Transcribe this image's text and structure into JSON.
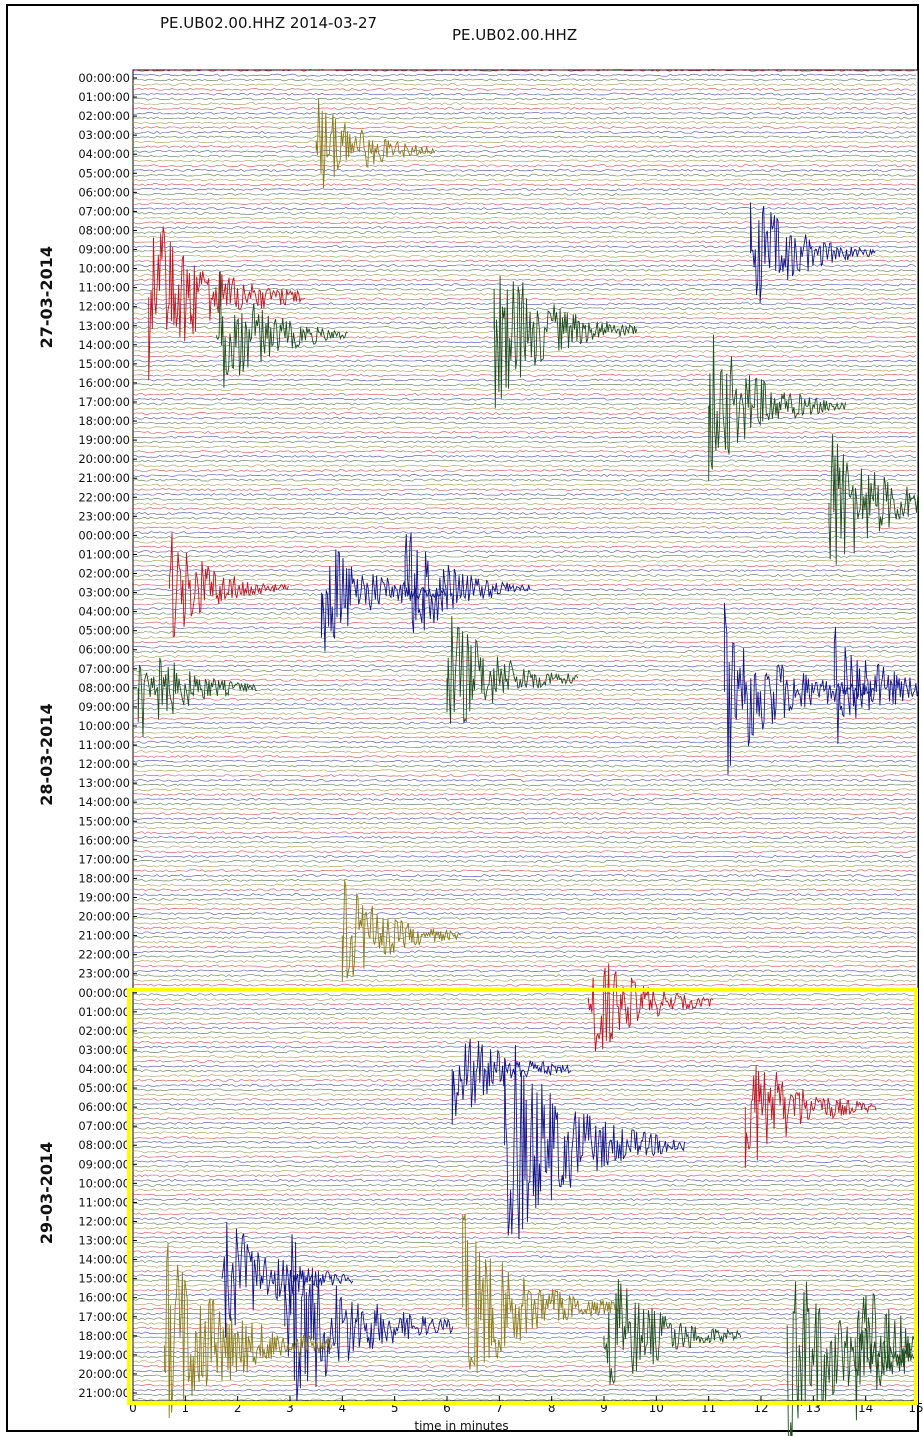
{
  "header": {
    "left_title": "PE.UB02.00.HHZ 2014-03-27",
    "right_title": "PE.UB02.00.HHZ"
  },
  "chart_data": {
    "type": "line",
    "title": "PE.UB02.00.HHZ",
    "xlabel": "time in minutes",
    "ylabel": "",
    "xlim": [
      0,
      15
    ],
    "x_ticks": [
      "0",
      "1",
      "2",
      "3",
      "4",
      "5",
      "6",
      "7",
      "8",
      "9",
      "10",
      "11",
      "12",
      "13",
      "14",
      "15"
    ],
    "y_tick_labels": [
      "00:00:00",
      "01:00:00",
      "02:00:00",
      "03:00:00",
      "04:00:00",
      "05:00:00",
      "06:00:00",
      "07:00:00",
      "08:00:00",
      "09:00:00",
      "10:00:00",
      "11:00:00",
      "12:00:00",
      "13:00:00",
      "14:00:00",
      "15:00:00",
      "16:00:00",
      "17:00:00",
      "18:00:00",
      "19:00:00",
      "20:00:00",
      "21:00:00",
      "22:00:00",
      "23:00:00",
      "00:00:00",
      "01:00:00",
      "02:00:00",
      "03:00:00",
      "04:00:00",
      "05:00:00",
      "06:00:00",
      "07:00:00",
      "08:00:00",
      "09:00:00",
      "10:00:00",
      "11:00:00",
      "12:00:00",
      "13:00:00",
      "14:00:00",
      "15:00:00",
      "16:00:00",
      "17:00:00",
      "18:00:00",
      "19:00:00",
      "20:00:00",
      "21:00:00",
      "22:00:00",
      "23:00:00",
      "00:00:00",
      "01:00:00",
      "02:00:00",
      "03:00:00",
      "04:00:00",
      "05:00:00",
      "06:00:00",
      "07:00:00",
      "08:00:00",
      "09:00:00",
      "10:00:00",
      "11:00:00",
      "12:00:00",
      "13:00:00",
      "14:00:00",
      "15:00:00",
      "16:00:00",
      "17:00:00",
      "18:00:00",
      "19:00:00",
      "20:00:00",
      "21:00:00"
    ],
    "day_labels": [
      {
        "label": "27-03-2014",
        "start_hour": 0,
        "end_hour": 24
      },
      {
        "label": "28-03-2014",
        "start_hour": 24,
        "end_hour": 48
      },
      {
        "label": "29-03-2014",
        "start_hour": 48,
        "end_hour": 70
      }
    ],
    "trace_colors": [
      "#c0141e",
      "#12148c",
      "#1e4d1e",
      "#8a7a18"
    ],
    "highlight": {
      "start_hour": 48,
      "end_hour": 70,
      "color": "#ffff00"
    },
    "events": [
      {
        "hour": 11.5,
        "minute": 0.3,
        "amplitude": 1.6,
        "color": "#c0141e"
      },
      {
        "hour": 13.5,
        "minute": 1.6,
        "amplitude": 1.2,
        "color": "#1e4d1e"
      },
      {
        "hour": 13.2,
        "minute": 6.9,
        "amplitude": 1.4,
        "color": "#1e4d1e"
      },
      {
        "hour": 17.2,
        "minute": 11.0,
        "amplitude": 1.3,
        "color": "#1e4d1e"
      },
      {
        "hour": 22.3,
        "minute": 13.3,
        "amplitude": 1.4,
        "color": "#1e4d1e"
      },
      {
        "hour": 3.8,
        "minute": 3.5,
        "amplitude": 1.0,
        "color": "#8a7a18"
      },
      {
        "hour": 9.2,
        "minute": 11.8,
        "amplitude": 1.1,
        "color": "#12148c"
      },
      {
        "hour": 26.8,
        "minute": 0.7,
        "amplitude": 1.0,
        "color": "#c0141e"
      },
      {
        "hour": 27.0,
        "minute": 3.6,
        "amplitude": 1.1,
        "color": "#12148c"
      },
      {
        "hour": 26.8,
        "minute": 5.2,
        "amplitude": 1.1,
        "color": "#12148c"
      },
      {
        "hour": 31.5,
        "minute": 6.0,
        "amplitude": 1.2,
        "color": "#1e4d1e"
      },
      {
        "hour": 32.2,
        "minute": 11.3,
        "amplitude": 1.5,
        "color": "#12148c"
      },
      {
        "hour": 32.0,
        "minute": 13.4,
        "amplitude": 1.1,
        "color": "#12148c"
      },
      {
        "hour": 32.0,
        "minute": 0.1,
        "amplitude": 1.0,
        "color": "#1e4d1e"
      },
      {
        "hour": 45.0,
        "minute": 4.0,
        "amplitude": 1.0,
        "color": "#8a7a18"
      },
      {
        "hour": 48.5,
        "minute": 8.7,
        "amplitude": 1.1,
        "color": "#c0141e"
      },
      {
        "hour": 52.0,
        "minute": 6.1,
        "amplitude": 1.0,
        "color": "#12148c"
      },
      {
        "hour": 54.0,
        "minute": 11.7,
        "amplitude": 1.2,
        "color": "#c0141e"
      },
      {
        "hour": 56.0,
        "minute": 7.1,
        "amplitude": 2.0,
        "color": "#12148c"
      },
      {
        "hour": 65.5,
        "minute": 2.9,
        "amplitude": 1.8,
        "color": "#12148c"
      },
      {
        "hour": 66.5,
        "minute": 0.6,
        "amplitude": 1.8,
        "color": "#8a7a18"
      },
      {
        "hour": 64.5,
        "minute": 6.3,
        "amplitude": 1.6,
        "color": "#8a7a18"
      },
      {
        "hour": 67.0,
        "minute": 12.5,
        "amplitude": 1.7,
        "color": "#1e4d1e"
      },
      {
        "hour": 63.0,
        "minute": 1.7,
        "amplitude": 1.2,
        "color": "#12148c"
      },
      {
        "hour": 66.0,
        "minute": 9.0,
        "amplitude": 1.3,
        "color": "#1e4d1e"
      },
      {
        "hour": 66.5,
        "minute": 13.8,
        "amplitude": 1.3,
        "color": "#1e4d1e"
      }
    ]
  }
}
